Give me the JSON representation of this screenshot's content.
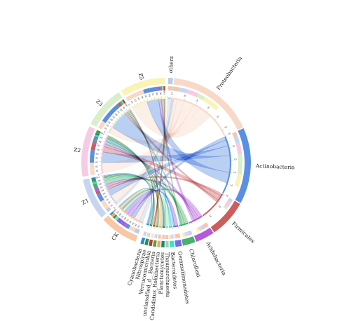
{
  "chart_data": {
    "type": "chord",
    "title": "",
    "samples": [
      {
        "name": "CK",
        "color": "#f7c7a6",
        "ticks": [
          "0",
          "10",
          "20",
          "30",
          "40",
          "50",
          "60",
          "70",
          "80",
          "90",
          "100"
        ]
      },
      {
        "name": "Z1",
        "color": "#c7d6ef",
        "ticks": [
          "0",
          "10",
          "20",
          "30",
          "40",
          "50",
          "60",
          "70",
          "80",
          "90",
          "100"
        ]
      },
      {
        "name": "Z2",
        "color": "#f6cbe4",
        "ticks": [
          "0",
          "10",
          "20",
          "30",
          "40",
          "50",
          "60",
          "70",
          "80",
          "90",
          "100"
        ]
      },
      {
        "name": "Z3",
        "color": "#d8efc8",
        "ticks": [
          "0",
          "10",
          "20",
          "30",
          "40",
          "50",
          "60",
          "70",
          "80",
          "90",
          "100"
        ]
      },
      {
        "name": "Z5",
        "color": "#f9f3b5",
        "ticks": [
          "0",
          "10",
          "20",
          "30",
          "40",
          "50",
          "60",
          "70",
          "80",
          "90",
          "100"
        ]
      }
    ],
    "taxa": [
      {
        "name": "others",
        "color": "#b8cde6",
        "value": 3
      },
      {
        "name": "Proteobacteria",
        "color": "#f8d9c7",
        "value": 55
      },
      {
        "name": "Actinobacteria",
        "color": "#5b8fe3",
        "value": 48
      },
      {
        "name": "Firmicutes",
        "color": "#cd5c5c",
        "value": 24
      },
      {
        "name": "Acidobacteria",
        "color": "#b35bd9",
        "value": 12
      },
      {
        "name": "Chloroflexi",
        "color": "#49b06e",
        "value": 8
      },
      {
        "name": "Gemmatimonadetes",
        "color": "#7b68ee",
        "value": 4
      },
      {
        "name": "Bacteroidetes",
        "color": "#40e0d0",
        "value": 3
      },
      {
        "name": "Thaumarchaeota",
        "color": "#9ad8a3",
        "value": 2
      },
      {
        "name": "Planctomycetes",
        "color": "#138a7b",
        "value": 2
      },
      {
        "name": "Candidatus_Rokubacteria",
        "color": "#f4a761",
        "value": 2
      },
      {
        "name": "unclassified_d__Bacteria",
        "color": "#5aa02c",
        "value": 2
      },
      {
        "name": "Verrucomicrobia",
        "color": "#c0392b",
        "value": 2
      },
      {
        "name": "Nitrospirae",
        "color": "#2e8b57",
        "value": 2
      },
      {
        "name": "Cyanobacteria",
        "color": "#1f8fc7",
        "value": 2
      }
    ],
    "taxa_tick_label": "10",
    "links": [
      [
        3,
        4,
        3,
        0,
        3,
        0,
        3,
        0,
        2,
        1,
        2,
        0,
        0,
        0,
        1
      ],
      [
        2,
        6,
        5,
        2,
        2,
        3,
        0,
        1,
        0,
        0,
        0,
        1,
        0,
        1,
        1
      ],
      [
        0,
        8,
        8,
        4,
        2,
        2,
        1,
        1,
        0,
        1,
        0,
        1,
        0,
        1,
        0
      ],
      [
        0,
        5,
        14,
        2,
        0,
        1,
        0,
        1,
        0,
        0,
        0,
        0,
        1,
        0,
        0
      ],
      [
        0,
        12,
        9,
        0,
        2,
        1,
        0,
        0,
        1,
        0,
        0,
        0,
        1,
        0,
        0
      ]
    ]
  }
}
